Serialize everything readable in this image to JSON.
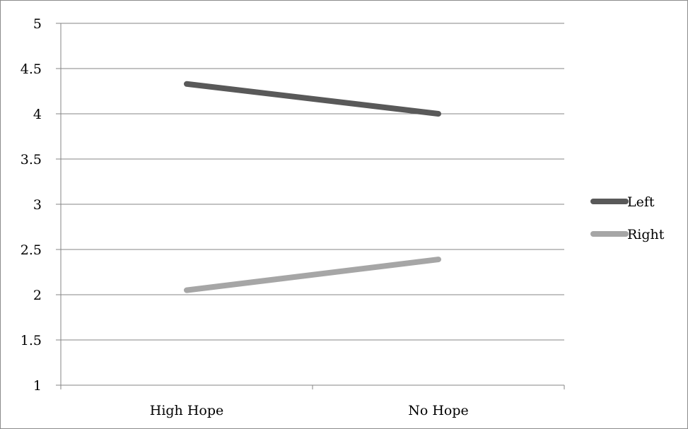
{
  "chart_data": {
    "type": "line",
    "title": "",
    "xlabel": "",
    "ylabel": "",
    "categories": [
      "High Hope",
      "No Hope"
    ],
    "ylim": [
      1,
      5
    ],
    "yticks": [
      1,
      1.5,
      2,
      2.5,
      3,
      3.5,
      4,
      4.5,
      5
    ],
    "ytick_labels": [
      "1",
      "1.5",
      "2",
      "2.5",
      "3",
      "3.5",
      "4",
      "4.5",
      "5"
    ],
    "grid": true,
    "legend_position": "right",
    "series": [
      {
        "name": "Left",
        "values": [
          4.33,
          4.0
        ],
        "color": "#595959"
      },
      {
        "name": "Right",
        "values": [
          2.05,
          2.39
        ],
        "color": "#a6a6a6"
      }
    ]
  }
}
